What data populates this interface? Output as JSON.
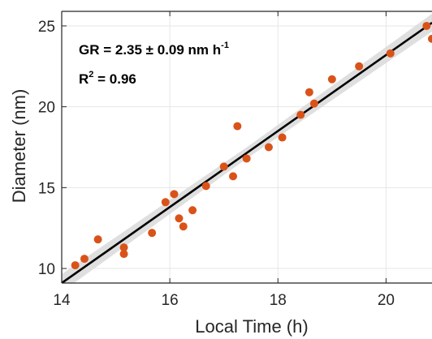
{
  "chart_data": {
    "type": "scatter",
    "xlabel": "Local Time (h)",
    "ylabel": "Diameter (nm)",
    "xlim": [
      14,
      20.85
    ],
    "ylim": [
      9.1,
      25.9
    ],
    "xticks": [
      14,
      16,
      18,
      20
    ],
    "yticks": [
      10,
      15,
      20,
      25
    ],
    "grid": true,
    "annotations": {
      "growth_rate": "GR = 2.35 ± 0.09 nm h",
      "growth_rate_sup": "-1",
      "r2_prefix": "R",
      "r2_sup": "2",
      "r2_value": " = 0.96"
    },
    "series": [
      {
        "points": [
          [
            14.25,
            10.2
          ],
          [
            14.42,
            10.6
          ],
          [
            14.67,
            11.8
          ],
          [
            15.15,
            11.3
          ],
          [
            15.15,
            10.9
          ],
          [
            15.67,
            12.2
          ],
          [
            15.92,
            14.1
          ],
          [
            16.08,
            14.6
          ],
          [
            16.17,
            13.1
          ],
          [
            16.25,
            12.6
          ],
          [
            16.42,
            13.6
          ],
          [
            16.67,
            15.1
          ],
          [
            17.0,
            16.3
          ],
          [
            17.17,
            15.7
          ],
          [
            17.25,
            18.8
          ],
          [
            17.42,
            16.8
          ],
          [
            17.83,
            17.5
          ],
          [
            18.08,
            18.1
          ],
          [
            18.42,
            19.5
          ],
          [
            18.58,
            20.9
          ],
          [
            18.67,
            20.2
          ],
          [
            19.0,
            21.7
          ],
          [
            19.5,
            22.5
          ],
          [
            20.08,
            23.3
          ],
          [
            20.75,
            25.0
          ],
          [
            20.85,
            24.2
          ]
        ],
        "marker_color": "#D95319"
      }
    ],
    "fit": {
      "slope": 2.35,
      "x0": 14.0,
      "y0": 9.1,
      "x1": 20.85,
      "band_halfwidth_low": 0.35,
      "band_halfwidth_high": 0.55,
      "line_color": "#000000",
      "band_color": "#D9D9D9"
    }
  }
}
